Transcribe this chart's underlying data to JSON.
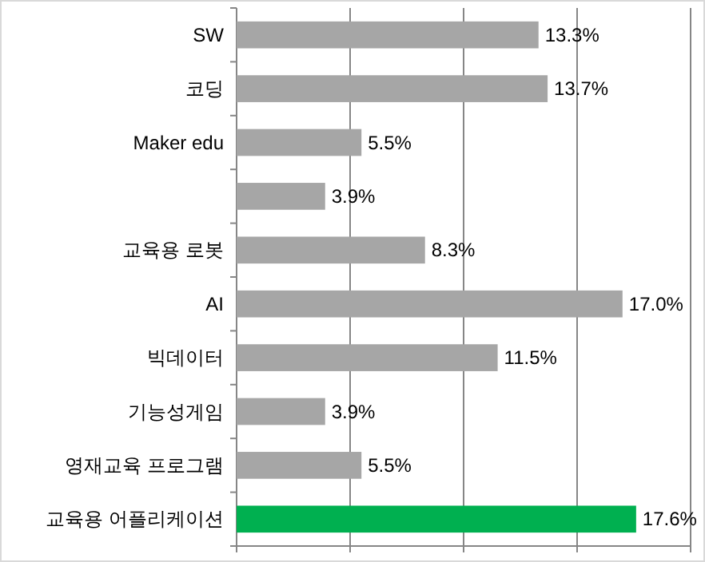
{
  "chart_data": {
    "type": "bar",
    "orientation": "horizontal",
    "categories": [
      "SW",
      "코딩",
      "Maker edu",
      null,
      "교육용 로봇",
      "AI",
      "빅데이터",
      "기능성게임",
      "영재교육 프로그램",
      "교육용 어플리케이션"
    ],
    "values": [
      13.3,
      13.7,
      5.5,
      3.9,
      8.3,
      17.0,
      11.5,
      3.9,
      5.5,
      17.6
    ],
    "value_labels": [
      "13.3%",
      "13.7%",
      "5.5%",
      "3.9%",
      "8.3%",
      "17.0%",
      "11.5%",
      "3.9%",
      "5.5%",
      "17.6%"
    ],
    "colors": [
      "#a6a6a6",
      "#a6a6a6",
      "#a6a6a6",
      "#a6a6a6",
      "#a6a6a6",
      "#a6a6a6",
      "#a6a6a6",
      "#a6a6a6",
      "#a6a6a6",
      "#00b050"
    ],
    "xlim": [
      0,
      20
    ],
    "xticks": [
      {
        "value": 0,
        "label": null
      },
      {
        "value": 5,
        "label": null
      },
      {
        "value": 10,
        "label": null
      },
      {
        "value": 15,
        "label": null
      },
      {
        "value": 20,
        "label": null
      }
    ],
    "grid": "x",
    "tick_labels": "y"
  }
}
